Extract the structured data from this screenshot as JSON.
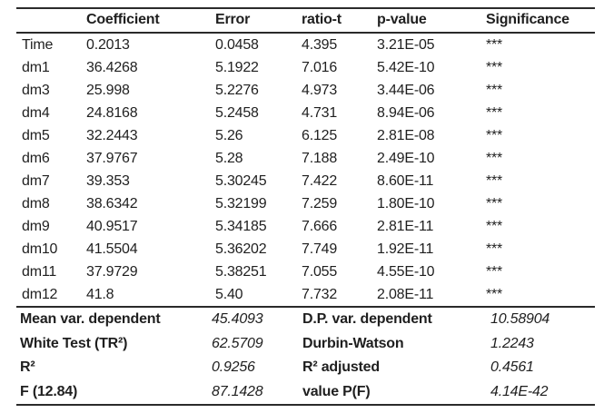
{
  "page": {
    "background": "#ffffff",
    "text_color": "#1f1f1f",
    "rule_color": "#2a2a2a"
  },
  "table": {
    "headers": {
      "label": "",
      "coefficient": "Coefficient",
      "error": "Error",
      "ratio_t": "ratio-t",
      "p_value": "p-value",
      "significance": "Significance"
    },
    "rows": [
      {
        "label": "Time",
        "coefficient": "0.2013",
        "error": "0.0458",
        "ratio_t": "4.395",
        "p_value": "3.21E-05",
        "significance": "***"
      },
      {
        "label": "dm1",
        "coefficient": "36.4268",
        "error": "5.1922",
        "ratio_t": "7.016",
        "p_value": "5.42E-10",
        "significance": "***"
      },
      {
        "label": "dm3",
        "coefficient": "25.998",
        "error": "5.2276",
        "ratio_t": "4.973",
        "p_value": "3.44E-06",
        "significance": "***"
      },
      {
        "label": "dm4",
        "coefficient": "24.8168",
        "error": "5.2458",
        "ratio_t": "4.731",
        "p_value": "8.94E-06",
        "significance": "***"
      },
      {
        "label": "dm5",
        "coefficient": "32.2443",
        "error": "5.26",
        "ratio_t": "6.125",
        "p_value": "2.81E-08",
        "significance": "***"
      },
      {
        "label": "dm6",
        "coefficient": "37.9767",
        "error": "5.28",
        "ratio_t": "7.188",
        "p_value": "2.49E-10",
        "significance": "***"
      },
      {
        "label": "dm7",
        "coefficient": "39.353",
        "error": "5.30245",
        "ratio_t": "7.422",
        "p_value": "8.60E-11",
        "significance": "***"
      },
      {
        "label": "dm8",
        "coefficient": "38.6342",
        "error": "5.32199",
        "ratio_t": "7.259",
        "p_value": "1.80E-10",
        "significance": "***"
      },
      {
        "label": "dm9",
        "coefficient": "40.9517",
        "error": "5.34185",
        "ratio_t": "7.666",
        "p_value": "2.81E-11",
        "significance": "***"
      },
      {
        "label": "dm10",
        "coefficient": "41.5504",
        "error": "5.36202",
        "ratio_t": "7.749",
        "p_value": "1.92E-11",
        "significance": "***"
      },
      {
        "label": "dm11",
        "coefficient": "37.9729",
        "error": "5.38251",
        "ratio_t": "7.055",
        "p_value": "4.55E-10",
        "significance": "***"
      },
      {
        "label": "dm12",
        "coefficient": "41.8",
        "error": "5.40",
        "ratio_t": "7.732",
        "p_value": "2.08E-11",
        "significance": "***"
      }
    ]
  },
  "summary": {
    "rows": [
      {
        "left_label": "Mean var. dependent",
        "left_value": "45.4093",
        "right_label": "D.P. var. dependent",
        "right_value": "10.58904"
      },
      {
        "left_label": "White Test (TR²)",
        "left_value": "62.5709",
        "right_label": "Durbin-Watson",
        "right_value": "1.2243"
      },
      {
        "left_label": "R²",
        "left_value": "0.9256",
        "right_label": "R² adjusted",
        "right_value": "0.4561"
      },
      {
        "left_label": "F (12.84)",
        "left_value": "87.1428",
        "right_label": "value P(F)",
        "right_value": "4.14E-42"
      }
    ]
  }
}
